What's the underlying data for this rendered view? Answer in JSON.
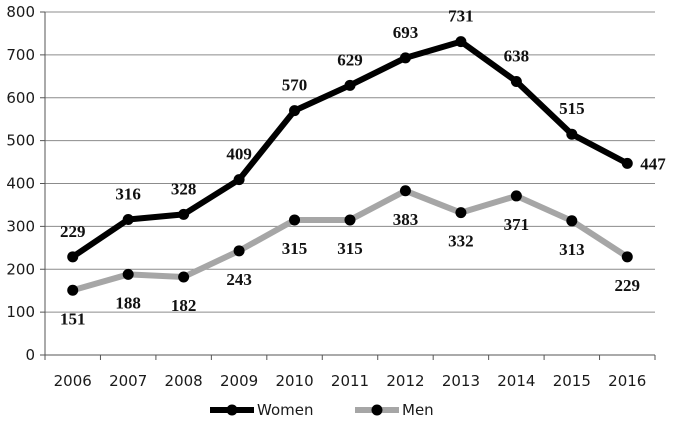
{
  "chart_data": {
    "type": "line",
    "title": "",
    "xlabel": "",
    "ylabel": "",
    "ylim": [
      0,
      800
    ],
    "yticks": [
      0,
      100,
      200,
      300,
      400,
      500,
      600,
      700,
      800
    ],
    "categories": [
      "2006",
      "2007",
      "2008",
      "2009",
      "2010",
      "2011",
      "2012",
      "2013",
      "2014",
      "2015",
      "2016"
    ],
    "grid": "horizontal",
    "legend_position": "bottom",
    "series": [
      {
        "name": "Women",
        "color": "#000000",
        "values": [
          229,
          316,
          328,
          409,
          570,
          629,
          693,
          731,
          638,
          515,
          447
        ],
        "labels": [
          "229",
          "316",
          "328",
          "409",
          "570",
          "629",
          "693",
          "731",
          "638",
          "515",
          "447"
        ],
        "label_placement": [
          "above",
          "above",
          "above",
          "above",
          "above",
          "above",
          "above",
          "above",
          "above",
          "above",
          "right"
        ]
      },
      {
        "name": "Men",
        "color": "#a6a6a6",
        "values": [
          151,
          188,
          182,
          243,
          315,
          315,
          383,
          332,
          371,
          313,
          229
        ],
        "labels": [
          "151",
          "188",
          "182",
          "243",
          "315",
          "315",
          "383",
          "332",
          "371",
          "313",
          "229"
        ],
        "label_placement": [
          "below",
          "below",
          "below",
          "below",
          "below",
          "below",
          "below",
          "below",
          "below",
          "below",
          "below"
        ]
      }
    ]
  }
}
